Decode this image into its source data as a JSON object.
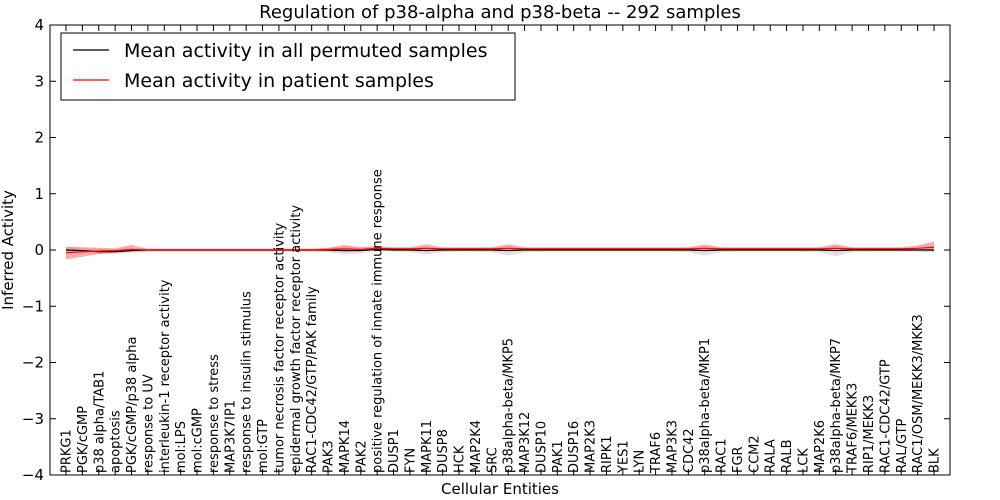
{
  "chart_data": {
    "type": "line",
    "title": "Regulation of p38-alpha and p38-beta -- 292 samples",
    "xlabel": "Cellular Entities",
    "ylabel": "Inferred Activity",
    "ylim": [
      -4,
      4
    ],
    "yticks": [
      -4,
      -3,
      -2,
      -1,
      0,
      1,
      2,
      3,
      4
    ],
    "ytick_labels": [
      "−4",
      "−3",
      "−2",
      "−1",
      "0",
      "1",
      "2",
      "3",
      "4"
    ],
    "grid": false,
    "legend_position": "top-left",
    "categories": [
      "PRKG1",
      "PGK/cGMP",
      "p38 alpha/TAB1",
      "apoptosis",
      "PGK/cGMP/p38 alpha",
      "response to UV",
      "interleukin-1 receptor activity",
      "mol:LPS",
      "mol:cGMP",
      "response to stress",
      "MAP3K7IP1",
      "response to insulin stimulus",
      "mol:GTP",
      "tumor necrosis factor receptor activity",
      "epidermal growth factor receptor activity",
      "RAC1-CDC42/GTP/PAK family",
      "PAK3",
      "MAPK14",
      "PAK2",
      "positive regulation of innate immune response",
      "DUSP1",
      "FYN",
      "MAPK11",
      "DUSP8",
      "HCK",
      "MAP2K4",
      "SRC",
      "p38alpha-beta/MKP5",
      "MAP3K12",
      "DUSP10",
      "PAK1",
      "DUSP16",
      "MAP2K3",
      "RIPK1",
      "YES1",
      "LYN",
      "TRAF6",
      "MAP3K3",
      "CDC42",
      "p38alpha-beta/MKP1",
      "RAC1",
      "FGR",
      "CCM2",
      "RALA",
      "RALB",
      "LCK",
      "MAP2K6",
      "p38alpha-beta/MKP7",
      "TRAF6/MEKK3",
      "RIP1/MEKK3",
      "RAC1-CDC42/GTP",
      "RAL/GTP",
      "RAC1/OSM/MEKK3/MKK3",
      "BLK"
    ],
    "series": [
      {
        "name": "Mean activity in all permuted samples",
        "color": "#000000",
        "values": [
          0.0,
          -0.01,
          -0.03,
          -0.03,
          -0.01,
          0.0,
          0.0,
          0.0,
          0.0,
          0.0,
          0.0,
          0.0,
          0.0,
          0.0,
          0.0,
          0.0,
          0.0,
          -0.01,
          -0.01,
          0.01,
          0.0,
          0.0,
          -0.01,
          0.0,
          0.0,
          0.0,
          0.0,
          -0.01,
          0.0,
          0.0,
          0.0,
          0.0,
          0.0,
          0.0,
          0.0,
          0.0,
          0.0,
          0.0,
          0.0,
          -0.01,
          0.0,
          0.0,
          0.0,
          0.0,
          0.0,
          0.0,
          0.0,
          -0.01,
          0.0,
          0.0,
          0.0,
          0.0,
          0.0,
          0.0
        ],
        "band_lower": [
          -0.06,
          -0.06,
          -0.07,
          -0.07,
          -0.05,
          -0.03,
          -0.03,
          -0.03,
          -0.03,
          -0.03,
          -0.03,
          -0.03,
          -0.03,
          -0.03,
          -0.03,
          -0.03,
          -0.04,
          -0.08,
          -0.06,
          -0.02,
          -0.03,
          -0.04,
          -0.08,
          -0.04,
          -0.03,
          -0.03,
          -0.04,
          -0.1,
          -0.04,
          -0.03,
          -0.03,
          -0.03,
          -0.03,
          -0.03,
          -0.03,
          -0.03,
          -0.03,
          -0.03,
          -0.04,
          -0.1,
          -0.04,
          -0.03,
          -0.03,
          -0.03,
          -0.03,
          -0.03,
          -0.04,
          -0.11,
          -0.04,
          -0.03,
          -0.03,
          -0.03,
          -0.03,
          -0.04
        ],
        "band_upper": [
          0.05,
          0.04,
          0.02,
          0.02,
          0.03,
          0.03,
          0.03,
          0.03,
          0.03,
          0.03,
          0.03,
          0.03,
          0.03,
          0.03,
          0.03,
          0.03,
          0.04,
          0.06,
          0.05,
          0.05,
          0.03,
          0.04,
          0.06,
          0.04,
          0.03,
          0.03,
          0.04,
          0.07,
          0.04,
          0.03,
          0.03,
          0.03,
          0.03,
          0.03,
          0.03,
          0.03,
          0.03,
          0.03,
          0.04,
          0.07,
          0.04,
          0.03,
          0.03,
          0.03,
          0.03,
          0.03,
          0.04,
          0.07,
          0.04,
          0.03,
          0.03,
          0.03,
          0.04,
          0.05
        ]
      },
      {
        "name": "Mean activity in patient samples",
        "color": "#ff0000",
        "values": [
          -0.05,
          -0.03,
          -0.02,
          -0.01,
          0.01,
          0.0,
          0.0,
          0.0,
          0.0,
          0.0,
          0.0,
          0.0,
          0.0,
          0.0,
          0.0,
          0.0,
          0.01,
          0.02,
          0.01,
          0.03,
          0.02,
          0.02,
          0.03,
          0.02,
          0.02,
          0.02,
          0.02,
          0.03,
          0.02,
          0.02,
          0.02,
          0.02,
          0.02,
          0.02,
          0.02,
          0.02,
          0.02,
          0.02,
          0.02,
          0.03,
          0.02,
          0.02,
          0.02,
          0.02,
          0.02,
          0.02,
          0.02,
          0.03,
          0.02,
          0.02,
          0.02,
          0.02,
          0.03,
          0.05
        ],
        "band_lower": [
          -0.17,
          -0.12,
          -0.07,
          -0.05,
          -0.03,
          -0.02,
          -0.02,
          -0.02,
          -0.02,
          -0.02,
          -0.02,
          -0.02,
          -0.02,
          -0.02,
          -0.02,
          -0.02,
          -0.02,
          -0.03,
          -0.02,
          0.0,
          -0.01,
          -0.01,
          -0.02,
          -0.01,
          -0.01,
          -0.01,
          -0.01,
          -0.02,
          -0.01,
          -0.01,
          -0.01,
          -0.01,
          -0.01,
          -0.01,
          -0.01,
          -0.01,
          -0.01,
          -0.01,
          -0.01,
          -0.02,
          -0.01,
          -0.01,
          -0.01,
          -0.01,
          -0.01,
          -0.01,
          -0.01,
          -0.02,
          -0.01,
          -0.01,
          -0.01,
          -0.01,
          -0.01,
          -0.02
        ],
        "band_upper": [
          0.06,
          0.05,
          0.04,
          0.03,
          0.09,
          0.02,
          0.02,
          0.02,
          0.02,
          0.02,
          0.02,
          0.02,
          0.02,
          0.02,
          0.02,
          0.02,
          0.04,
          0.09,
          0.05,
          0.07,
          0.05,
          0.05,
          0.1,
          0.05,
          0.05,
          0.05,
          0.05,
          0.1,
          0.05,
          0.05,
          0.05,
          0.05,
          0.05,
          0.05,
          0.05,
          0.05,
          0.05,
          0.05,
          0.05,
          0.1,
          0.05,
          0.05,
          0.05,
          0.05,
          0.05,
          0.05,
          0.05,
          0.1,
          0.05,
          0.05,
          0.05,
          0.05,
          0.08,
          0.15
        ]
      }
    ]
  }
}
